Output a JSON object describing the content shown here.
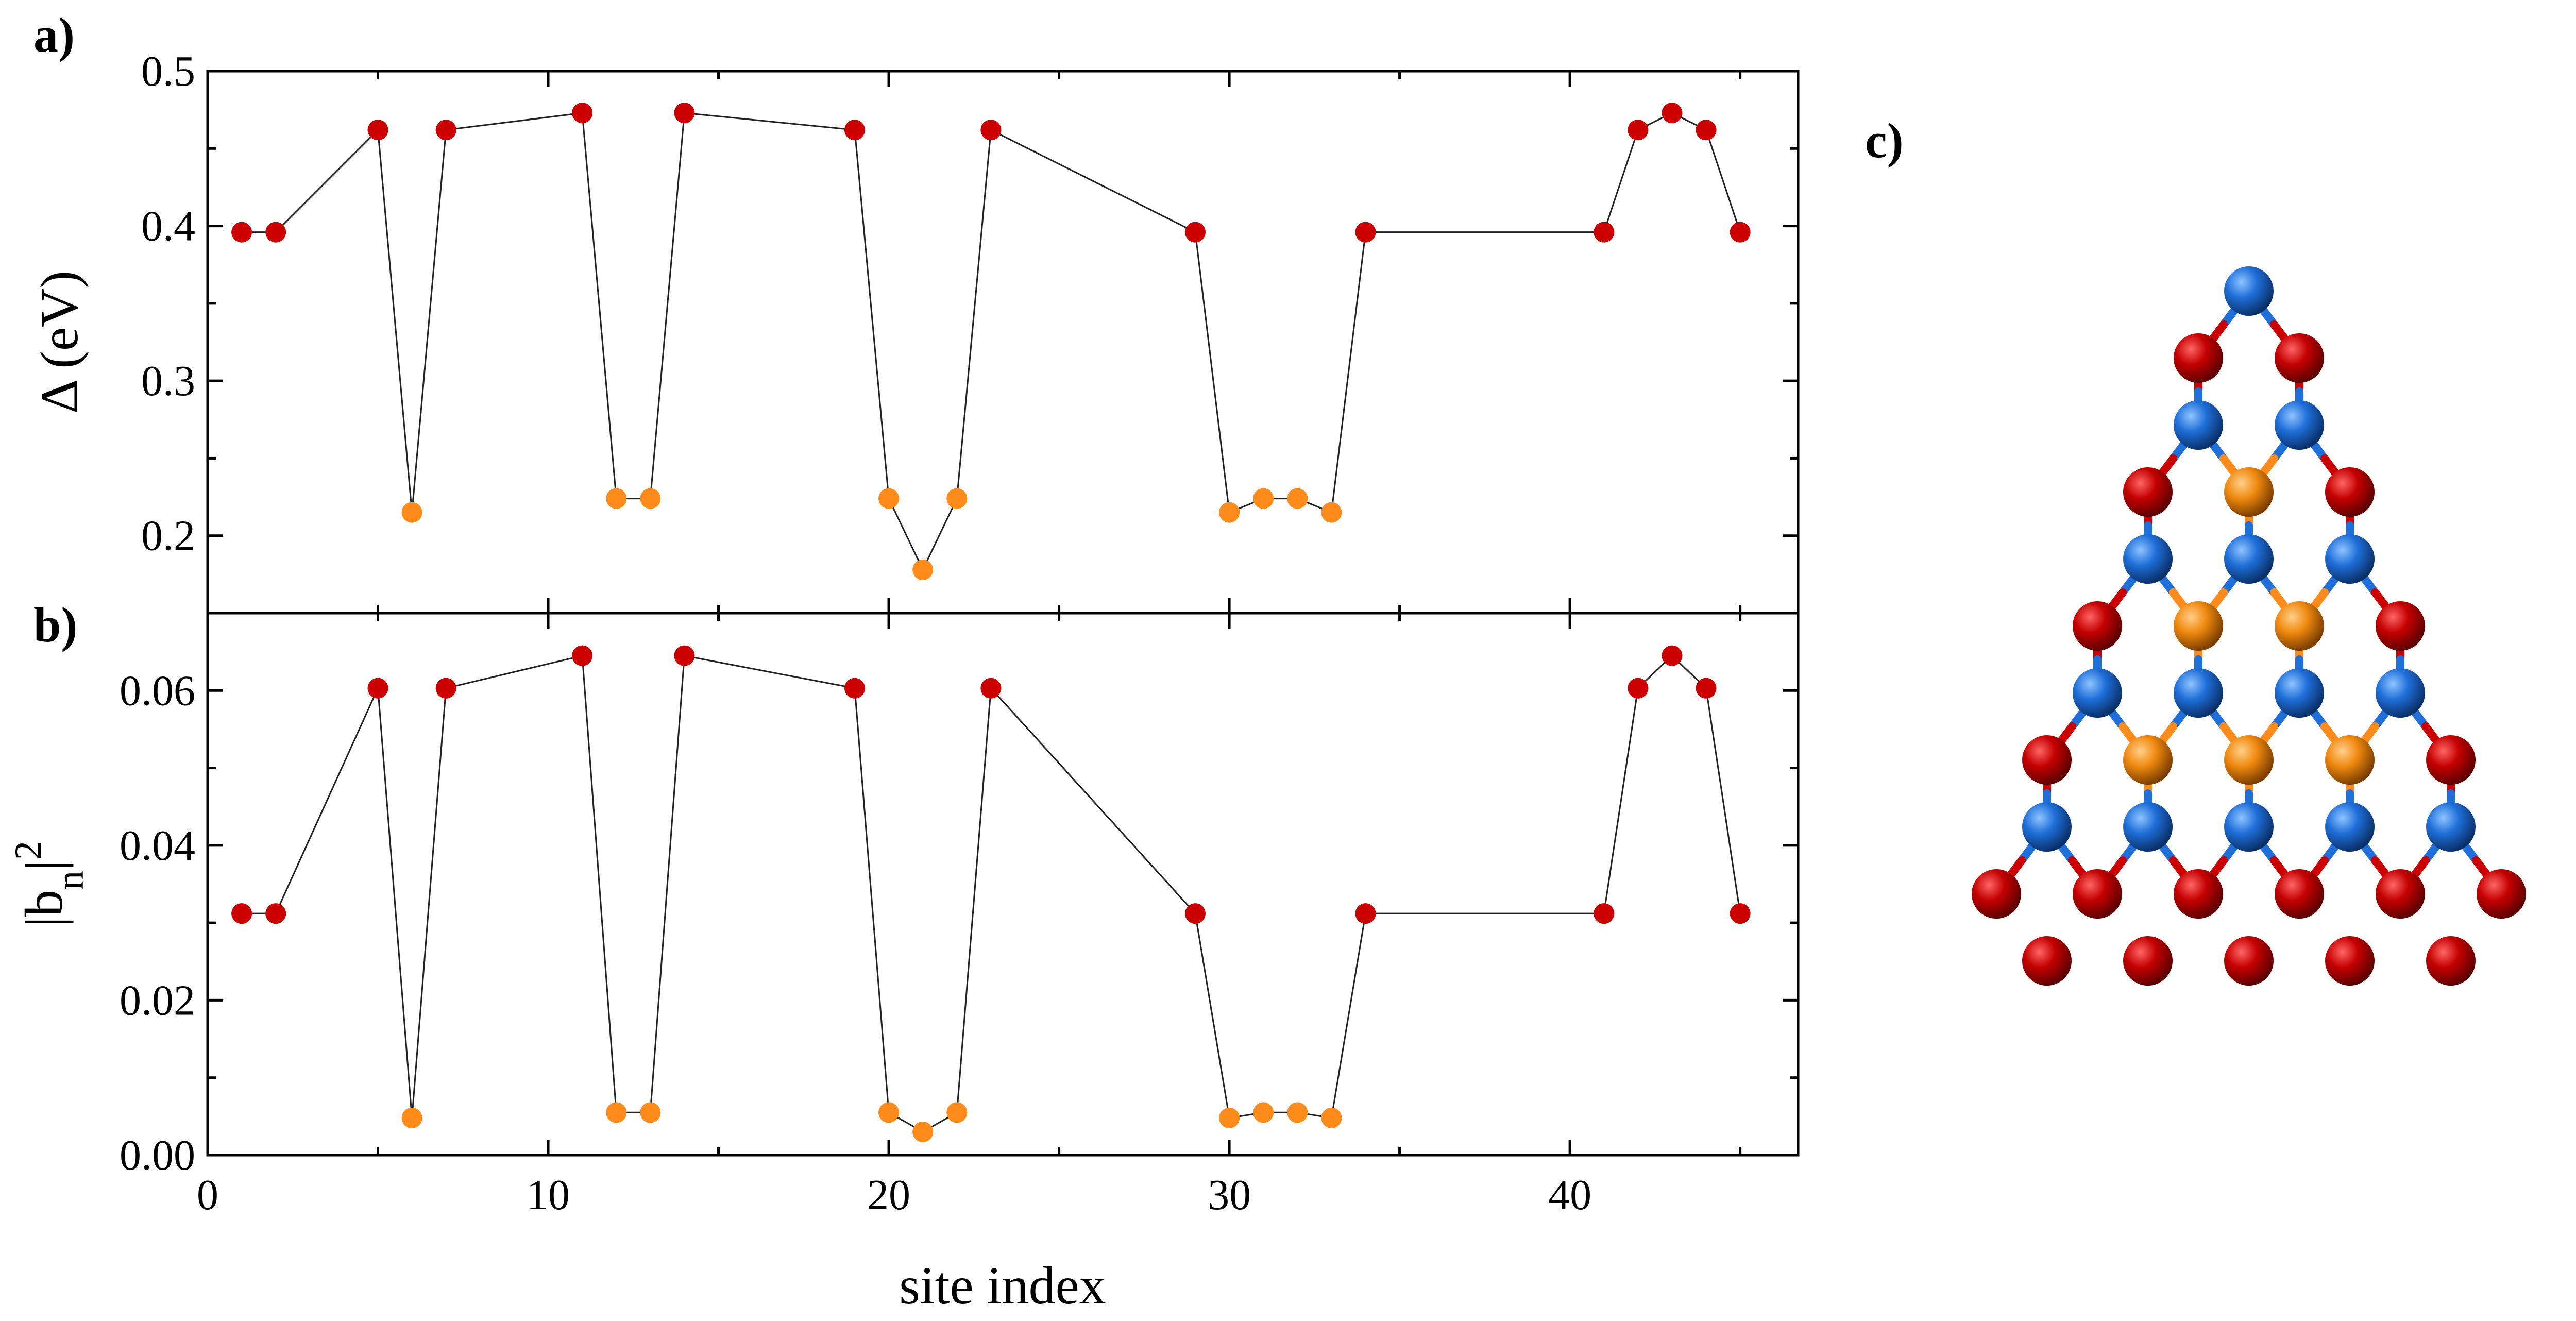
{
  "panels": {
    "a": "a)",
    "b": "b)",
    "c": "c)"
  },
  "colors": {
    "edge": "#CC0000",
    "interior": "#FF8C1A",
    "blue": "#1E6FD9"
  },
  "chart_data": [
    {
      "type": "scatter",
      "panel": "a)",
      "ylabel": "Δ (eV)",
      "xlabel": "",
      "xlim": [
        0,
        46.7
      ],
      "ylim": [
        0.15,
        0.5
      ],
      "xticks": [
        0,
        10,
        20,
        30,
        40
      ],
      "yticks": [
        0.2,
        0.3,
        0.4,
        0.5
      ],
      "ytick_labels": [
        "0.2",
        "0.3",
        "0.4",
        "0.5"
      ],
      "points": [
        {
          "x": 1,
          "y": 0.396,
          "c": "edge"
        },
        {
          "x": 2,
          "y": 0.396,
          "c": "edge"
        },
        {
          "x": 5,
          "y": 0.462,
          "c": "edge"
        },
        {
          "x": 6,
          "y": 0.215,
          "c": "interior"
        },
        {
          "x": 7,
          "y": 0.462,
          "c": "edge"
        },
        {
          "x": 11,
          "y": 0.473,
          "c": "edge"
        },
        {
          "x": 12,
          "y": 0.224,
          "c": "interior"
        },
        {
          "x": 13,
          "y": 0.224,
          "c": "interior"
        },
        {
          "x": 14,
          "y": 0.473,
          "c": "edge"
        },
        {
          "x": 19,
          "y": 0.462,
          "c": "edge"
        },
        {
          "x": 20,
          "y": 0.224,
          "c": "interior"
        },
        {
          "x": 21,
          "y": 0.178,
          "c": "interior"
        },
        {
          "x": 22,
          "y": 0.224,
          "c": "interior"
        },
        {
          "x": 23,
          "y": 0.462,
          "c": "edge"
        },
        {
          "x": 29,
          "y": 0.396,
          "c": "edge"
        },
        {
          "x": 30,
          "y": 0.215,
          "c": "interior"
        },
        {
          "x": 31,
          "y": 0.224,
          "c": "interior"
        },
        {
          "x": 32,
          "y": 0.224,
          "c": "interior"
        },
        {
          "x": 33,
          "y": 0.215,
          "c": "interior"
        },
        {
          "x": 34,
          "y": 0.396,
          "c": "edge"
        },
        {
          "x": 41,
          "y": 0.396,
          "c": "edge"
        },
        {
          "x": 42,
          "y": 0.462,
          "c": "edge"
        },
        {
          "x": 43,
          "y": 0.473,
          "c": "edge"
        },
        {
          "x": 44,
          "y": 0.462,
          "c": "edge"
        },
        {
          "x": 45,
          "y": 0.396,
          "c": "edge"
        }
      ]
    },
    {
      "type": "scatter",
      "panel": "b)",
      "ylabel": "|b_n|^2",
      "xlabel": "site index",
      "xlim": [
        0,
        46.7
      ],
      "ylim": [
        0,
        0.07
      ],
      "xticks": [
        0,
        10,
        20,
        30,
        40
      ],
      "xtick_labels": [
        "0",
        "10",
        "20",
        "30",
        "40"
      ],
      "yticks": [
        0,
        0.02,
        0.04,
        0.06
      ],
      "ytick_labels": [
        "0.00",
        "0.02",
        "0.04",
        "0.06"
      ],
      "points": [
        {
          "x": 1,
          "y": 0.0312,
          "c": "edge"
        },
        {
          "x": 2,
          "y": 0.0312,
          "c": "edge"
        },
        {
          "x": 5,
          "y": 0.0603,
          "c": "edge"
        },
        {
          "x": 6,
          "y": 0.0048,
          "c": "interior"
        },
        {
          "x": 7,
          "y": 0.0603,
          "c": "edge"
        },
        {
          "x": 11,
          "y": 0.0645,
          "c": "edge"
        },
        {
          "x": 12,
          "y": 0.0055,
          "c": "interior"
        },
        {
          "x": 13,
          "y": 0.0055,
          "c": "interior"
        },
        {
          "x": 14,
          "y": 0.0645,
          "c": "edge"
        },
        {
          "x": 19,
          "y": 0.0603,
          "c": "edge"
        },
        {
          "x": 20,
          "y": 0.0055,
          "c": "interior"
        },
        {
          "x": 21,
          "y": 0.003,
          "c": "interior"
        },
        {
          "x": 22,
          "y": 0.0055,
          "c": "interior"
        },
        {
          "x": 23,
          "y": 0.0603,
          "c": "edge"
        },
        {
          "x": 29,
          "y": 0.0312,
          "c": "edge"
        },
        {
          "x": 30,
          "y": 0.0048,
          "c": "interior"
        },
        {
          "x": 31,
          "y": 0.0055,
          "c": "interior"
        },
        {
          "x": 32,
          "y": 0.0055,
          "c": "interior"
        },
        {
          "x": 33,
          "y": 0.0048,
          "c": "interior"
        },
        {
          "x": 34,
          "y": 0.0312,
          "c": "edge"
        },
        {
          "x": 41,
          "y": 0.0312,
          "c": "edge"
        },
        {
          "x": 42,
          "y": 0.0603,
          "c": "edge"
        },
        {
          "x": 43,
          "y": 0.0645,
          "c": "edge"
        },
        {
          "x": 44,
          "y": 0.0603,
          "c": "edge"
        },
        {
          "x": 45,
          "y": 0.0312,
          "c": "edge"
        }
      ]
    }
  ]
}
